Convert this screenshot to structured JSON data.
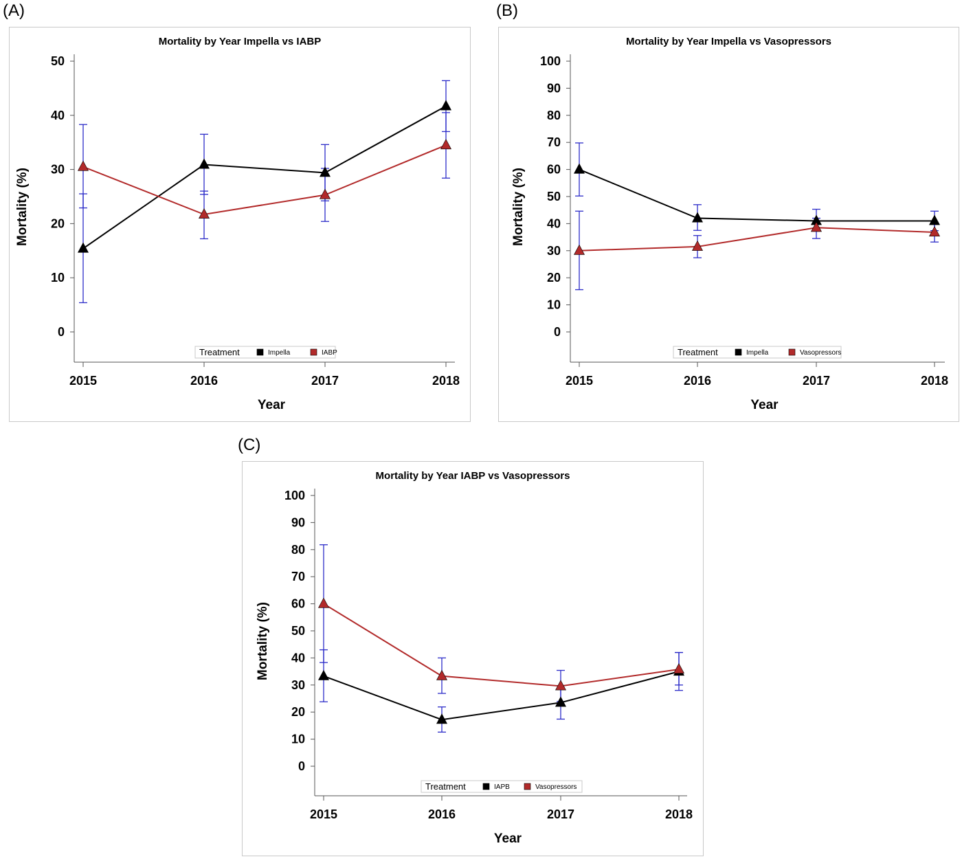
{
  "panels": [
    {
      "tag": "(A)"
    },
    {
      "tag": "(B)"
    },
    {
      "tag": "(C)"
    }
  ],
  "colors": {
    "series1": "#000000",
    "series2": "#b22a2a",
    "error_bar": "#2b2bc8",
    "axis": "#555555"
  },
  "chart_data": [
    {
      "type": "line",
      "title": "Mortality by Year Impella vs IABP",
      "xlabel": "Year",
      "ylabel": "Mortality (%)",
      "categories": [
        "2015",
        "2016",
        "2017",
        "2018"
      ],
      "ylim": [
        0,
        50
      ],
      "yticks": [
        0,
        10,
        20,
        30,
        40,
        50
      ],
      "legend": {
        "title": "Treatment",
        "placement": "bottom-center"
      },
      "series": [
        {
          "name": "Impella",
          "color": "#000000",
          "values": [
            15.4,
            30.9,
            29.4,
            41.7
          ],
          "lower": [
            5.4,
            25.4,
            24.2,
            37.0
          ],
          "upper": [
            25.5,
            36.5,
            34.6,
            46.4
          ]
        },
        {
          "name": "IABP",
          "color": "#b22a2a",
          "values": [
            30.5,
            21.7,
            25.3,
            34.5
          ],
          "lower": [
            22.9,
            17.2,
            20.4,
            28.4
          ],
          "upper": [
            38.3,
            26.0,
            30.2,
            40.5
          ]
        }
      ]
    },
    {
      "type": "line",
      "title": "Mortality by Year Impella vs Vasopressors",
      "xlabel": "Year",
      "ylabel": "Mortality (%)",
      "categories": [
        "2015",
        "2016",
        "2017",
        "2018"
      ],
      "ylim": [
        0,
        100
      ],
      "yticks": [
        0,
        10,
        20,
        30,
        40,
        50,
        60,
        70,
        80,
        90,
        100
      ],
      "legend": {
        "title": "Treatment",
        "placement": "bottom-center"
      },
      "series": [
        {
          "name": "Impella",
          "color": "#000000",
          "values": [
            60.0,
            42.0,
            41.0,
            41.0
          ],
          "lower": [
            50.2,
            37.5,
            37.2,
            37.4
          ],
          "upper": [
            69.8,
            47.0,
            45.3,
            44.6
          ]
        },
        {
          "name": "Vasopressors",
          "color": "#b22a2a",
          "values": [
            30.0,
            31.5,
            38.5,
            36.8
          ],
          "lower": [
            15.6,
            27.4,
            34.5,
            33.2
          ],
          "upper": [
            44.6,
            35.6,
            42.0,
            40.0
          ]
        }
      ]
    },
    {
      "type": "line",
      "title": "Mortality by Year IABP vs Vasopressors",
      "xlabel": "Year",
      "ylabel": "Mortality (%)",
      "categories": [
        "2015",
        "2016",
        "2017",
        "2018"
      ],
      "ylim": [
        0,
        100
      ],
      "yticks": [
        0,
        10,
        20,
        30,
        40,
        50,
        60,
        70,
        80,
        90,
        100
      ],
      "legend": {
        "title": "Treatment",
        "placement": "bottom-center"
      },
      "series": [
        {
          "name": "IAPB",
          "color": "#000000",
          "values": [
            33.3,
            17.2,
            23.5,
            35.0
          ],
          "lower": [
            23.8,
            12.6,
            17.4,
            28.0
          ],
          "upper": [
            43.0,
            21.9,
            29.7,
            42.0
          ]
        },
        {
          "name": "Vasopressors",
          "color": "#b22a2a",
          "values": [
            60.0,
            33.3,
            29.6,
            35.8
          ],
          "lower": [
            38.3,
            26.9,
            23.9,
            30.0
          ],
          "upper": [
            81.8,
            40.0,
            35.4,
            42.0
          ]
        }
      ]
    }
  ]
}
